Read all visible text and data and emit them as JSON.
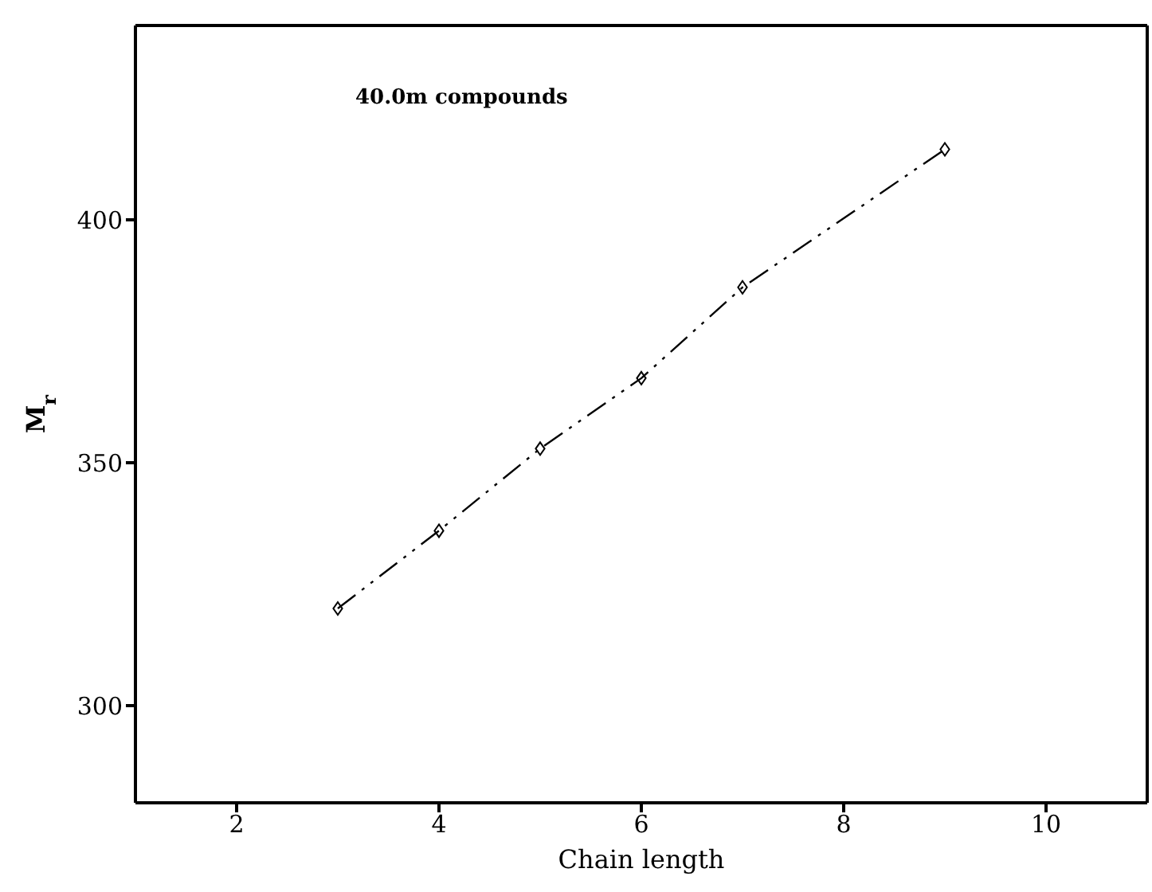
{
  "chart_data": {
    "type": "line",
    "xlabel": "Chain length",
    "ylabel": "M$_{r}$",
    "annotations": [
      "40.0m compounds"
    ],
    "x": [
      3,
      4,
      5,
      6,
      7,
      9
    ],
    "series": [
      {
        "color": "#000000",
        "values": [
          320,
          336,
          352.9,
          367.4,
          386.1,
          414.5
        ]
      }
    ],
    "xlim": [
      1,
      11
    ],
    "xticks": [
      2,
      4,
      6,
      8,
      10
    ],
    "ylim": [
      280,
      440
    ],
    "yticks": [
      300,
      350,
      400
    ],
    "marker": "diamond",
    "line_style": "dashed",
    "grid": false,
    "legend": false
  }
}
